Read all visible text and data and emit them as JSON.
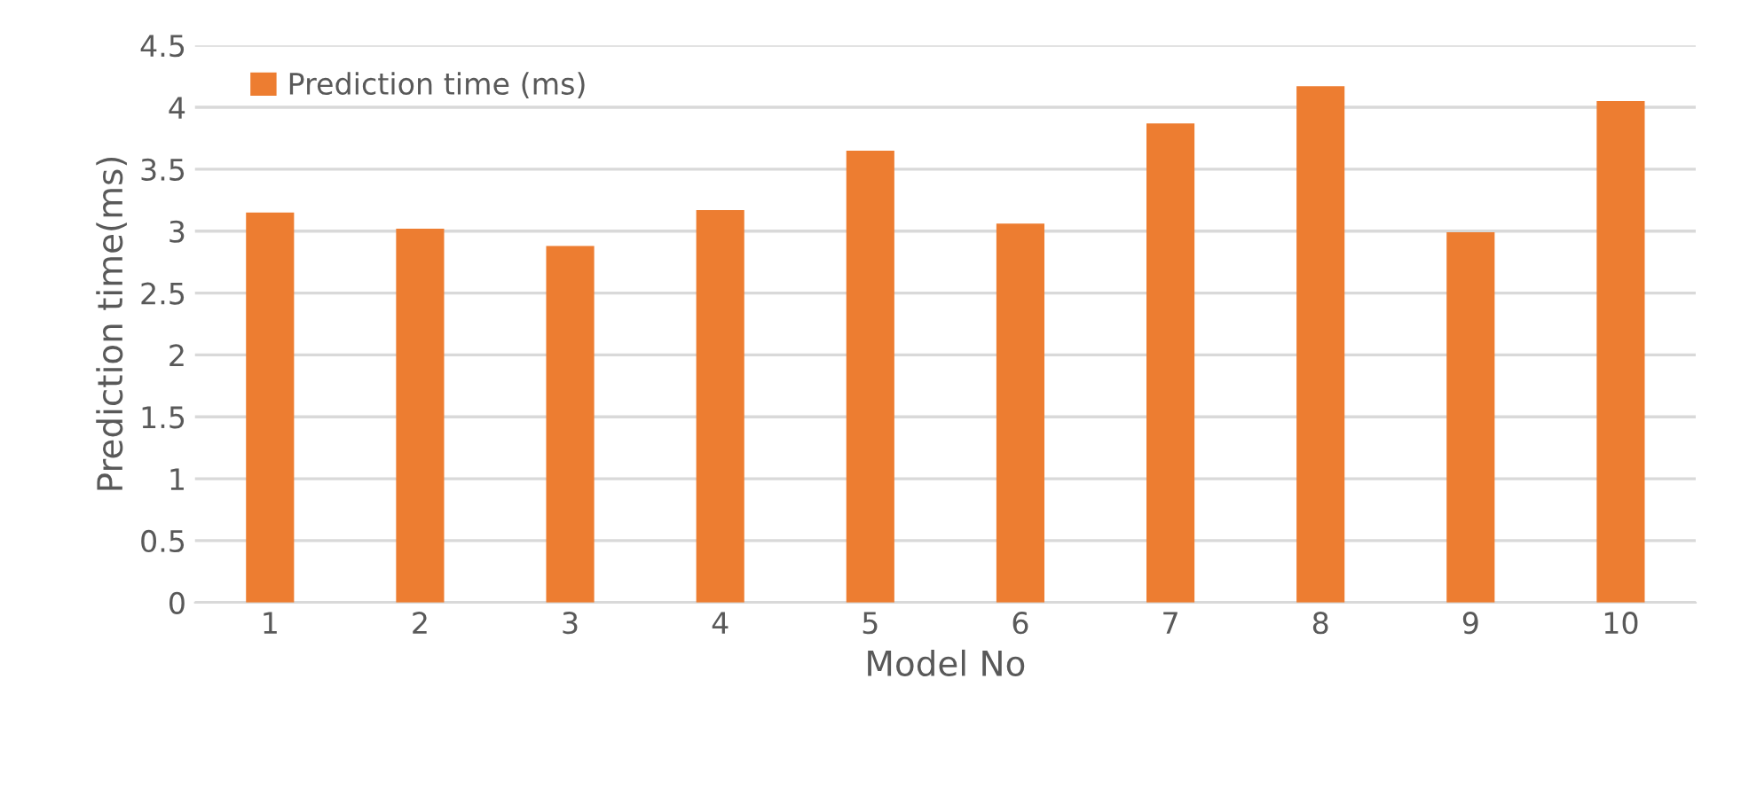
{
  "chart_data": {
    "type": "bar",
    "xlabel": "Model No",
    "ylabel": "Prediction time(ms)",
    "categories": [
      "1",
      "2",
      "3",
      "4",
      "5",
      "6",
      "7",
      "8",
      "9",
      "10"
    ],
    "series": [
      {
        "name": "Prediction time (ms)",
        "color": "#ed7d31",
        "values": [
          3.15,
          3.02,
          2.88,
          3.17,
          3.65,
          3.06,
          3.87,
          4.17,
          2.99,
          4.05
        ]
      }
    ],
    "ylim": [
      0,
      4.5
    ],
    "yticks": [
      0,
      {
        "value": 0.5,
        "label": "0.5"
      },
      1,
      {
        "value": 1.5,
        "label": "1.5"
      },
      2,
      {
        "value": 2.5,
        "label": "2.5"
      },
      3,
      {
        "value": 3.5,
        "label": "3.5"
      },
      4,
      {
        "value": 4.5,
        "label": "4.5"
      }
    ],
    "grid": "y",
    "legend": "top left"
  }
}
